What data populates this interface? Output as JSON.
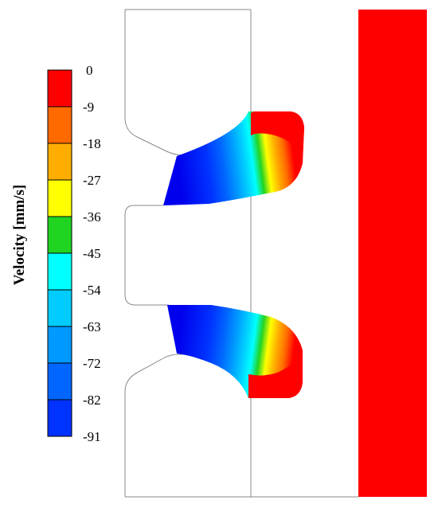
{
  "colorbar": {
    "title": "Velocity [mm/s]",
    "ticks": [
      "0",
      "-9",
      "-18",
      "-27",
      "-36",
      "-45",
      "-54",
      "-63",
      "-72",
      "-82",
      "-91"
    ],
    "colors": [
      "#ff0000",
      "#ff6a00",
      "#ffae00",
      "#ffff00",
      "#22d422",
      "#00ffff",
      "#00ccff",
      "#0099ff",
      "#0066ff",
      "#0033ff",
      "#0000ee"
    ]
  },
  "field_colors": {
    "stationary": "#ff0000",
    "max_velocity": "#0000ee",
    "outline": "#8a8a8a"
  }
}
